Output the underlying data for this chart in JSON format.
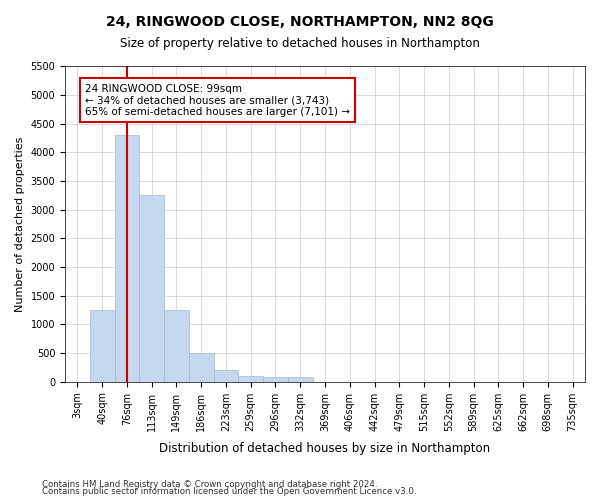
{
  "title": "24, RINGWOOD CLOSE, NORTHAMPTON, NN2 8QG",
  "subtitle": "Size of property relative to detached houses in Northampton",
  "xlabel": "Distribution of detached houses by size in Northampton",
  "ylabel": "Number of detached properties",
  "bins": [
    "3sqm",
    "40sqm",
    "76sqm",
    "113sqm",
    "149sqm",
    "186sqm",
    "223sqm",
    "259sqm",
    "296sqm",
    "332sqm",
    "369sqm",
    "406sqm",
    "442sqm",
    "479sqm",
    "515sqm",
    "552sqm",
    "589sqm",
    "625sqm",
    "662sqm",
    "698sqm",
    "735sqm"
  ],
  "bar_values": [
    0,
    1250,
    4300,
    3250,
    1250,
    500,
    200,
    100,
    75,
    75,
    0,
    0,
    0,
    0,
    0,
    0,
    0,
    0,
    0,
    0,
    0
  ],
  "bar_color": "#c5d8f0",
  "bar_edge_color": "#a0b8d8",
  "vline_x": 2.0,
  "vline_color": "#cc0000",
  "annotation_text": "24 RINGWOOD CLOSE: 99sqm\n← 34% of detached houses are smaller (3,743)\n65% of semi-detached houses are larger (7,101) →",
  "annotation_box_color": "#ffffff",
  "annotation_box_edge": "#cc0000",
  "ylim": [
    0,
    5500
  ],
  "yticks": [
    0,
    500,
    1000,
    1500,
    2000,
    2500,
    3000,
    3500,
    4000,
    4500,
    5000,
    5500
  ],
  "footer1": "Contains HM Land Registry data © Crown copyright and database right 2024.",
  "footer2": "Contains public sector information licensed under the Open Government Licence v3.0.",
  "bg_color": "#ffffff",
  "grid_color": "#cccccc"
}
